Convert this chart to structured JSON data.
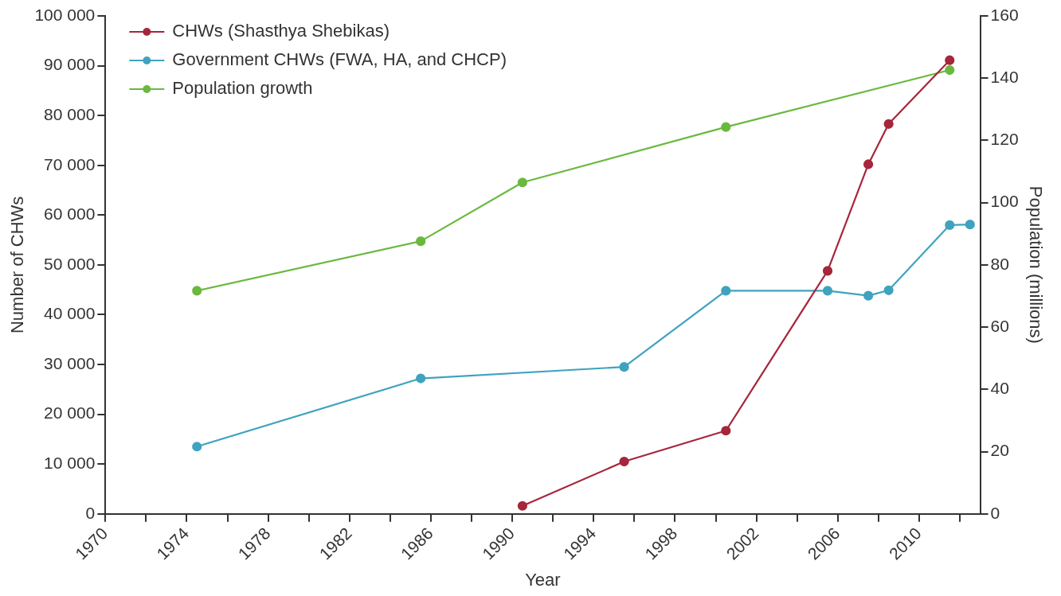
{
  "chart_data": {
    "type": "line",
    "xlabel": "Year",
    "ylabel": "Number of CHWs",
    "y2label": "Population (millions)",
    "xlim": [
      1970,
      2013
    ],
    "xticks": [
      1970,
      {
        "value": 1972,
        "label": null
      },
      1974,
      {
        "value": 1976,
        "label": null
      },
      1978,
      {
        "value": 1980,
        "label": null
      },
      1982,
      {
        "value": 1984,
        "label": null
      },
      1986,
      {
        "value": 1988,
        "label": null
      },
      1990,
      {
        "value": 1992,
        "label": null
      },
      1994,
      {
        "value": 1996,
        "label": null
      },
      1998,
      {
        "value": 2000,
        "label": null
      },
      2002,
      {
        "value": 2004,
        "label": null
      },
      2006,
      {
        "value": 2008,
        "label": null
      },
      2010,
      {
        "value": 2012,
        "label": null
      }
    ],
    "ylim": [
      0,
      100000
    ],
    "yticks": [
      {
        "value": 0,
        "label": "0"
      },
      {
        "value": 10000,
        "label": "10 000"
      },
      {
        "value": 20000,
        "label": "20 000"
      },
      {
        "value": 30000,
        "label": "30 000"
      },
      {
        "value": 40000,
        "label": "40 000"
      },
      {
        "value": 50000,
        "label": "50 000"
      },
      {
        "value": 60000,
        "label": "60 000"
      },
      {
        "value": 70000,
        "label": "70 000"
      },
      {
        "value": 80000,
        "label": "80 000"
      },
      {
        "value": 90000,
        "label": "90 000"
      },
      {
        "value": 100000,
        "label": "100 000"
      }
    ],
    "y2lim": [
      0,
      160
    ],
    "y2ticks": [
      0,
      20,
      40,
      60,
      80,
      100,
      120,
      140,
      160
    ],
    "grid": false,
    "legend": "top left",
    "marker": "circle",
    "line_style": "solid",
    "series": [
      {
        "name": "CHWs (Shasthya Shebikas)",
        "color": "#a6263b",
        "x": [
          1990.5,
          1995.5,
          2000.5,
          2005.5,
          2007.5,
          2008.5,
          2011.5
        ],
        "values": [
          1600,
          10500,
          16700,
          48800,
          70200,
          78300,
          91100
        ]
      },
      {
        "name": "Government CHWs (FWA, HA, and CHCP)",
        "color": "#3fa3bf",
        "x": [
          1974.5,
          1985.5,
          1995.5,
          2000.5,
          2005.5,
          2007.5,
          2008.5,
          2011.5,
          2012.5
        ],
        "values": [
          13500,
          27200,
          29500,
          44800,
          44800,
          43800,
          44900,
          58000,
          58100
        ]
      },
      {
        "name": "Population growth",
        "color": "#6ab93f",
        "axis": "y2",
        "x": [
          1974.5,
          1985.5,
          1990.5,
          2000.5,
          2011.5
        ],
        "values": [
          71.7,
          87.6,
          106.5,
          124.3,
          142.6
        ]
      }
    ]
  }
}
